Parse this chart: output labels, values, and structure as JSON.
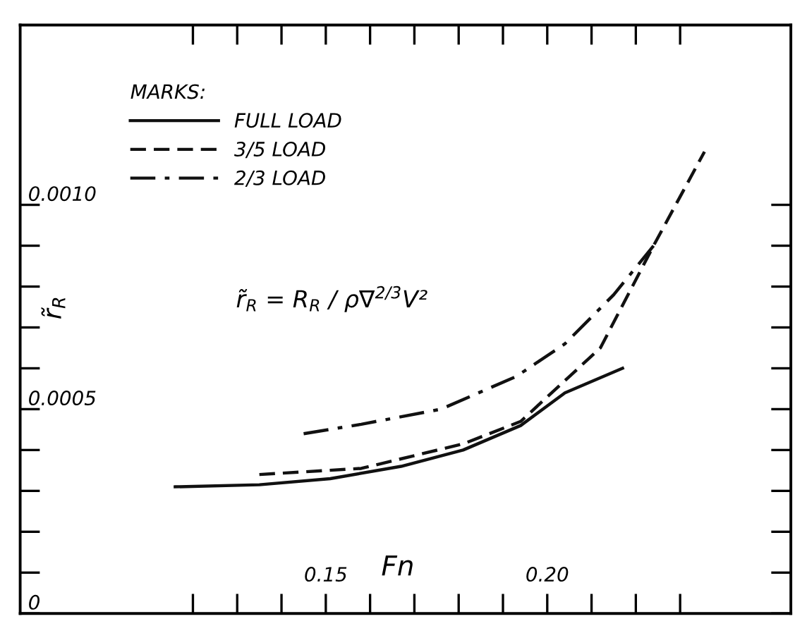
{
  "chart_data": {
    "type": "line",
    "xlabel": "Fn",
    "ylabel": "r̃$_{R}$",
    "legend_title": "MARKS:",
    "annotations": [
      "r̃$_{R}$ = R$_{R}$ / ρ∇$^{2/3}$V²"
    ],
    "xlim": [
      0.081,
      0.255
    ],
    "ylim": [
      0,
      0.00144
    ],
    "xticks": [
      {
        "value": 0.12,
        "label": null
      },
      {
        "value": 0.13,
        "label": null
      },
      {
        "value": 0.14,
        "label": null
      },
      {
        "value": 0.15,
        "label": "0.15"
      },
      {
        "value": 0.16,
        "label": null
      },
      {
        "value": 0.17,
        "label": null
      },
      {
        "value": 0.18,
        "label": null
      },
      {
        "value": 0.19,
        "label": null
      },
      {
        "value": 0.2,
        "label": "0.20"
      },
      {
        "value": 0.21,
        "label": null
      },
      {
        "value": 0.22,
        "label": null
      },
      {
        "value": 0.23,
        "label": null
      }
    ],
    "yticks": [
      {
        "value": 0,
        "label": "0"
      },
      {
        "value": 0.0001,
        "label": null
      },
      {
        "value": 0.0002,
        "label": null
      },
      {
        "value": 0.0003,
        "label": null
      },
      {
        "value": 0.0004,
        "label": null
      },
      {
        "value": 0.0005,
        "label": "0.0005"
      },
      {
        "value": 0.0006,
        "label": null
      },
      {
        "value": 0.0007,
        "label": null
      },
      {
        "value": 0.0008,
        "label": null
      },
      {
        "value": 0.0009,
        "label": null
      },
      {
        "value": 0.001,
        "label": "0.0010"
      }
    ],
    "grid": false,
    "legend": "top left",
    "marker": "none",
    "series": [
      {
        "name": "FULL LOAD",
        "color": "#111111",
        "line_style": "solid",
        "x": [
          0.116,
          0.135,
          0.151,
          0.167,
          0.181,
          0.194,
          0.204,
          0.217
        ],
        "values": [
          0.00031,
          0.000315,
          0.00033,
          0.00036,
          0.0004,
          0.00046,
          0.00054,
          0.0006
        ]
      },
      {
        "name": "3/5 LOAD",
        "color": "#111111",
        "line_style": "dashed",
        "x": [
          0.135,
          0.158,
          0.181,
          0.194,
          0.204,
          0.212,
          0.224,
          0.2355
        ],
        "values": [
          0.00034,
          0.000355,
          0.000415,
          0.00047,
          0.00057,
          0.00065,
          0.0009,
          0.00113
        ]
      },
      {
        "name": "2/3 LOAD",
        "color": "#111111",
        "line_style": "dashdot",
        "x": [
          0.145,
          0.158,
          0.176,
          0.193,
          0.204,
          0.215,
          0.224
        ],
        "values": [
          0.00044,
          0.000463,
          0.0005,
          0.00058,
          0.00066,
          0.00078,
          0.0009
        ]
      }
    ]
  }
}
